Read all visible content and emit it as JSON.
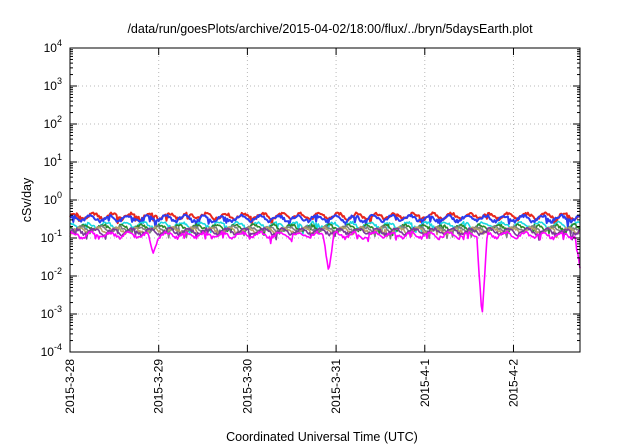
{
  "chart_data": {
    "type": "line",
    "title": "/data/run/goesPlots/archive/2015-04-02/18:00/flux/../bryn/5daysEarth.plot",
    "xlabel": "Coordinated Universal Time (UTC)",
    "ylabel": "cSv/day",
    "yscale": "log",
    "ylim": [
      0.0001,
      10000
    ],
    "xlim": [
      "2015-03-28 00:00",
      "2015-04-02 18:00"
    ],
    "xticks": [
      "2015-3-28",
      "2015-3-29",
      "2015-3-30",
      "2015-3-31",
      "2015-4-1",
      "2015-4-2"
    ],
    "yticks": [
      {
        "base": "10",
        "exp": "-4"
      },
      {
        "base": "10",
        "exp": "-3"
      },
      {
        "base": "10",
        "exp": "-2"
      },
      {
        "base": "10",
        "exp": "-1"
      },
      {
        "base": "10",
        "exp": "0"
      },
      {
        "base": "10",
        "exp": "1"
      },
      {
        "base": "10",
        "exp": "2"
      },
      {
        "base": "10",
        "exp": "3"
      },
      {
        "base": "10",
        "exp": "4"
      }
    ],
    "grid": true,
    "legend": "none",
    "series": [
      {
        "color": "#e8271c",
        "baseline": 0.38,
        "dips": []
      },
      {
        "color": "#2b3cf0",
        "baseline": 0.33,
        "dips": []
      },
      {
        "color": "#19d8e0",
        "baseline": 0.22,
        "dips": []
      },
      {
        "color": "#2a8a2a",
        "baseline": 0.19,
        "dips": []
      },
      {
        "color": "#7f7f7f",
        "baseline": 0.17,
        "dips": []
      },
      {
        "color": "#b8a06a",
        "baseline": 0.16,
        "dips": []
      },
      {
        "color": "#7a3a9a",
        "baseline": 0.15,
        "dips": []
      },
      {
        "color": "#ff00ff",
        "baseline": 0.12,
        "dips": [
          {
            "x": "2015-03-28 22:30",
            "y": 0.04
          },
          {
            "x": "2015-03-30 22:00",
            "y": 0.013
          },
          {
            "x": "2015-04-01 15:30",
            "y": 0.0008
          },
          {
            "x": "2015-04-02 18:00",
            "y": 0.016
          }
        ]
      }
    ]
  }
}
